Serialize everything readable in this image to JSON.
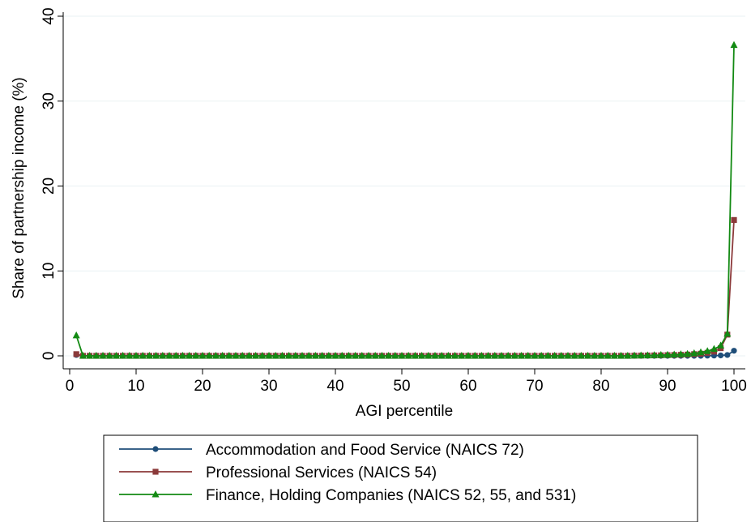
{
  "chart_data": {
    "type": "line",
    "title": "",
    "xlabel": "AGI percentile",
    "ylabel": "Share of partnership income (%)",
    "xlim": [
      0,
      100
    ],
    "ylim": [
      0,
      40
    ],
    "x_ticks": [
      "0",
      "10",
      "20",
      "30",
      "40",
      "50",
      "60",
      "70",
      "80",
      "90",
      "100"
    ],
    "y_ticks": [
      "0",
      "10",
      "20",
      "30",
      "40"
    ],
    "grid": "horizontal",
    "legend_position": "bottom",
    "series": [
      {
        "name": "Accommodation and Food Service (NAICS 72)",
        "color": "#1f4e79",
        "marker": "circle",
        "x": [
          1,
          2,
          3,
          4,
          5,
          6,
          7,
          8,
          9,
          10,
          11,
          12,
          13,
          14,
          15,
          16,
          17,
          18,
          19,
          20,
          21,
          22,
          23,
          24,
          25,
          26,
          27,
          28,
          29,
          30,
          31,
          32,
          33,
          34,
          35,
          36,
          37,
          38,
          39,
          40,
          41,
          42,
          43,
          44,
          45,
          46,
          47,
          48,
          49,
          50,
          51,
          52,
          53,
          54,
          55,
          56,
          57,
          58,
          59,
          60,
          61,
          62,
          63,
          64,
          65,
          66,
          67,
          68,
          69,
          70,
          71,
          72,
          73,
          74,
          75,
          76,
          77,
          78,
          79,
          80,
          81,
          82,
          83,
          84,
          85,
          86,
          87,
          88,
          89,
          90,
          91,
          92,
          93,
          94,
          95,
          96,
          97,
          98,
          99,
          100
        ],
        "y": [
          0.1,
          0,
          0,
          0,
          0,
          0,
          0,
          0,
          0,
          0,
          0,
          0,
          0,
          0,
          0,
          0,
          0,
          0,
          0,
          0,
          0,
          0,
          0,
          0,
          0,
          0,
          0,
          0,
          0,
          0,
          0,
          0,
          0,
          0,
          0,
          0,
          0,
          0,
          0,
          0,
          0,
          0,
          0,
          0,
          0,
          0,
          0,
          0,
          0,
          0,
          0,
          0,
          0,
          0,
          0,
          0,
          0,
          0,
          0,
          0,
          0,
          0,
          0,
          0,
          0,
          0,
          0,
          0,
          0,
          0,
          0,
          0,
          0,
          0,
          0,
          0,
          0,
          0,
          0,
          0,
          0,
          0,
          0,
          0,
          0,
          0,
          0,
          0,
          0,
          0,
          0,
          0,
          0,
          0,
          0,
          0.02,
          0.03,
          0.05,
          0.1,
          0.6
        ]
      },
      {
        "name": "Professional Services (NAICS 54)",
        "color": "#8b3a3a",
        "marker": "square",
        "x": [
          1,
          2,
          3,
          4,
          5,
          6,
          7,
          8,
          9,
          10,
          11,
          12,
          13,
          14,
          15,
          16,
          17,
          18,
          19,
          20,
          21,
          22,
          23,
          24,
          25,
          26,
          27,
          28,
          29,
          30,
          31,
          32,
          33,
          34,
          35,
          36,
          37,
          38,
          39,
          40,
          41,
          42,
          43,
          44,
          45,
          46,
          47,
          48,
          49,
          50,
          51,
          52,
          53,
          54,
          55,
          56,
          57,
          58,
          59,
          60,
          61,
          62,
          63,
          64,
          65,
          66,
          67,
          68,
          69,
          70,
          71,
          72,
          73,
          74,
          75,
          76,
          77,
          78,
          79,
          80,
          81,
          82,
          83,
          84,
          85,
          86,
          87,
          88,
          89,
          90,
          91,
          92,
          93,
          94,
          95,
          96,
          97,
          98,
          99,
          100
        ],
        "y": [
          0.2,
          0,
          0,
          0,
          0,
          0,
          0,
          0,
          0,
          0,
          0,
          0,
          0,
          0,
          0,
          0,
          0,
          0,
          0,
          0,
          0,
          0,
          0,
          0,
          0,
          0,
          0,
          0,
          0,
          0,
          0,
          0,
          0,
          0,
          0,
          0,
          0,
          0,
          0,
          0,
          0,
          0,
          0,
          0,
          0,
          0,
          0,
          0,
          0,
          0,
          0,
          0,
          0,
          0,
          0,
          0,
          0,
          0,
          0,
          0,
          0,
          0,
          0,
          0,
          0,
          0,
          0,
          0,
          0,
          0,
          0,
          0,
          0,
          0,
          0,
          0,
          0,
          0,
          0,
          0,
          0,
          0,
          0,
          0,
          0.02,
          0.03,
          0.04,
          0.05,
          0.06,
          0.08,
          0.1,
          0.12,
          0.15,
          0.2,
          0.25,
          0.35,
          0.5,
          0.9,
          2.5,
          16
        ]
      },
      {
        "name": "Finance, Holding Companies (NAICS 52, 55, and 531)",
        "color": "#138a13",
        "marker": "triangle",
        "x": [
          1,
          2,
          3,
          4,
          5,
          6,
          7,
          8,
          9,
          10,
          11,
          12,
          13,
          14,
          15,
          16,
          17,
          18,
          19,
          20,
          21,
          22,
          23,
          24,
          25,
          26,
          27,
          28,
          29,
          30,
          31,
          32,
          33,
          34,
          35,
          36,
          37,
          38,
          39,
          40,
          41,
          42,
          43,
          44,
          45,
          46,
          47,
          48,
          49,
          50,
          51,
          52,
          53,
          54,
          55,
          56,
          57,
          58,
          59,
          60,
          61,
          62,
          63,
          64,
          65,
          66,
          67,
          68,
          69,
          70,
          71,
          72,
          73,
          74,
          75,
          76,
          77,
          78,
          79,
          80,
          81,
          82,
          83,
          84,
          85,
          86,
          87,
          88,
          89,
          90,
          91,
          92,
          93,
          94,
          95,
          96,
          97,
          98,
          99,
          100
        ],
        "y": [
          2.4,
          0,
          0,
          0,
          0,
          0,
          0,
          0,
          0,
          0,
          0,
          0,
          0,
          0,
          0,
          0,
          0,
          0,
          0,
          0,
          0,
          0,
          0,
          0,
          0,
          0,
          0,
          0,
          0,
          0,
          0,
          0,
          0,
          0,
          0,
          0,
          0,
          0,
          0,
          0,
          0,
          0,
          0,
          0,
          0,
          0,
          0,
          0,
          0,
          0,
          0,
          0,
          0,
          0,
          0,
          0,
          0,
          0,
          0,
          0,
          0,
          0,
          0,
          0,
          0,
          0,
          0,
          0,
          0,
          0,
          0,
          0,
          0,
          0,
          0,
          0,
          0,
          0,
          0,
          0,
          0,
          0,
          0,
          0,
          0.02,
          0.03,
          0.05,
          0.07,
          0.09,
          0.11,
          0.14,
          0.18,
          0.22,
          0.3,
          0.4,
          0.55,
          0.8,
          1.2,
          2.6,
          36.6
        ]
      }
    ]
  }
}
